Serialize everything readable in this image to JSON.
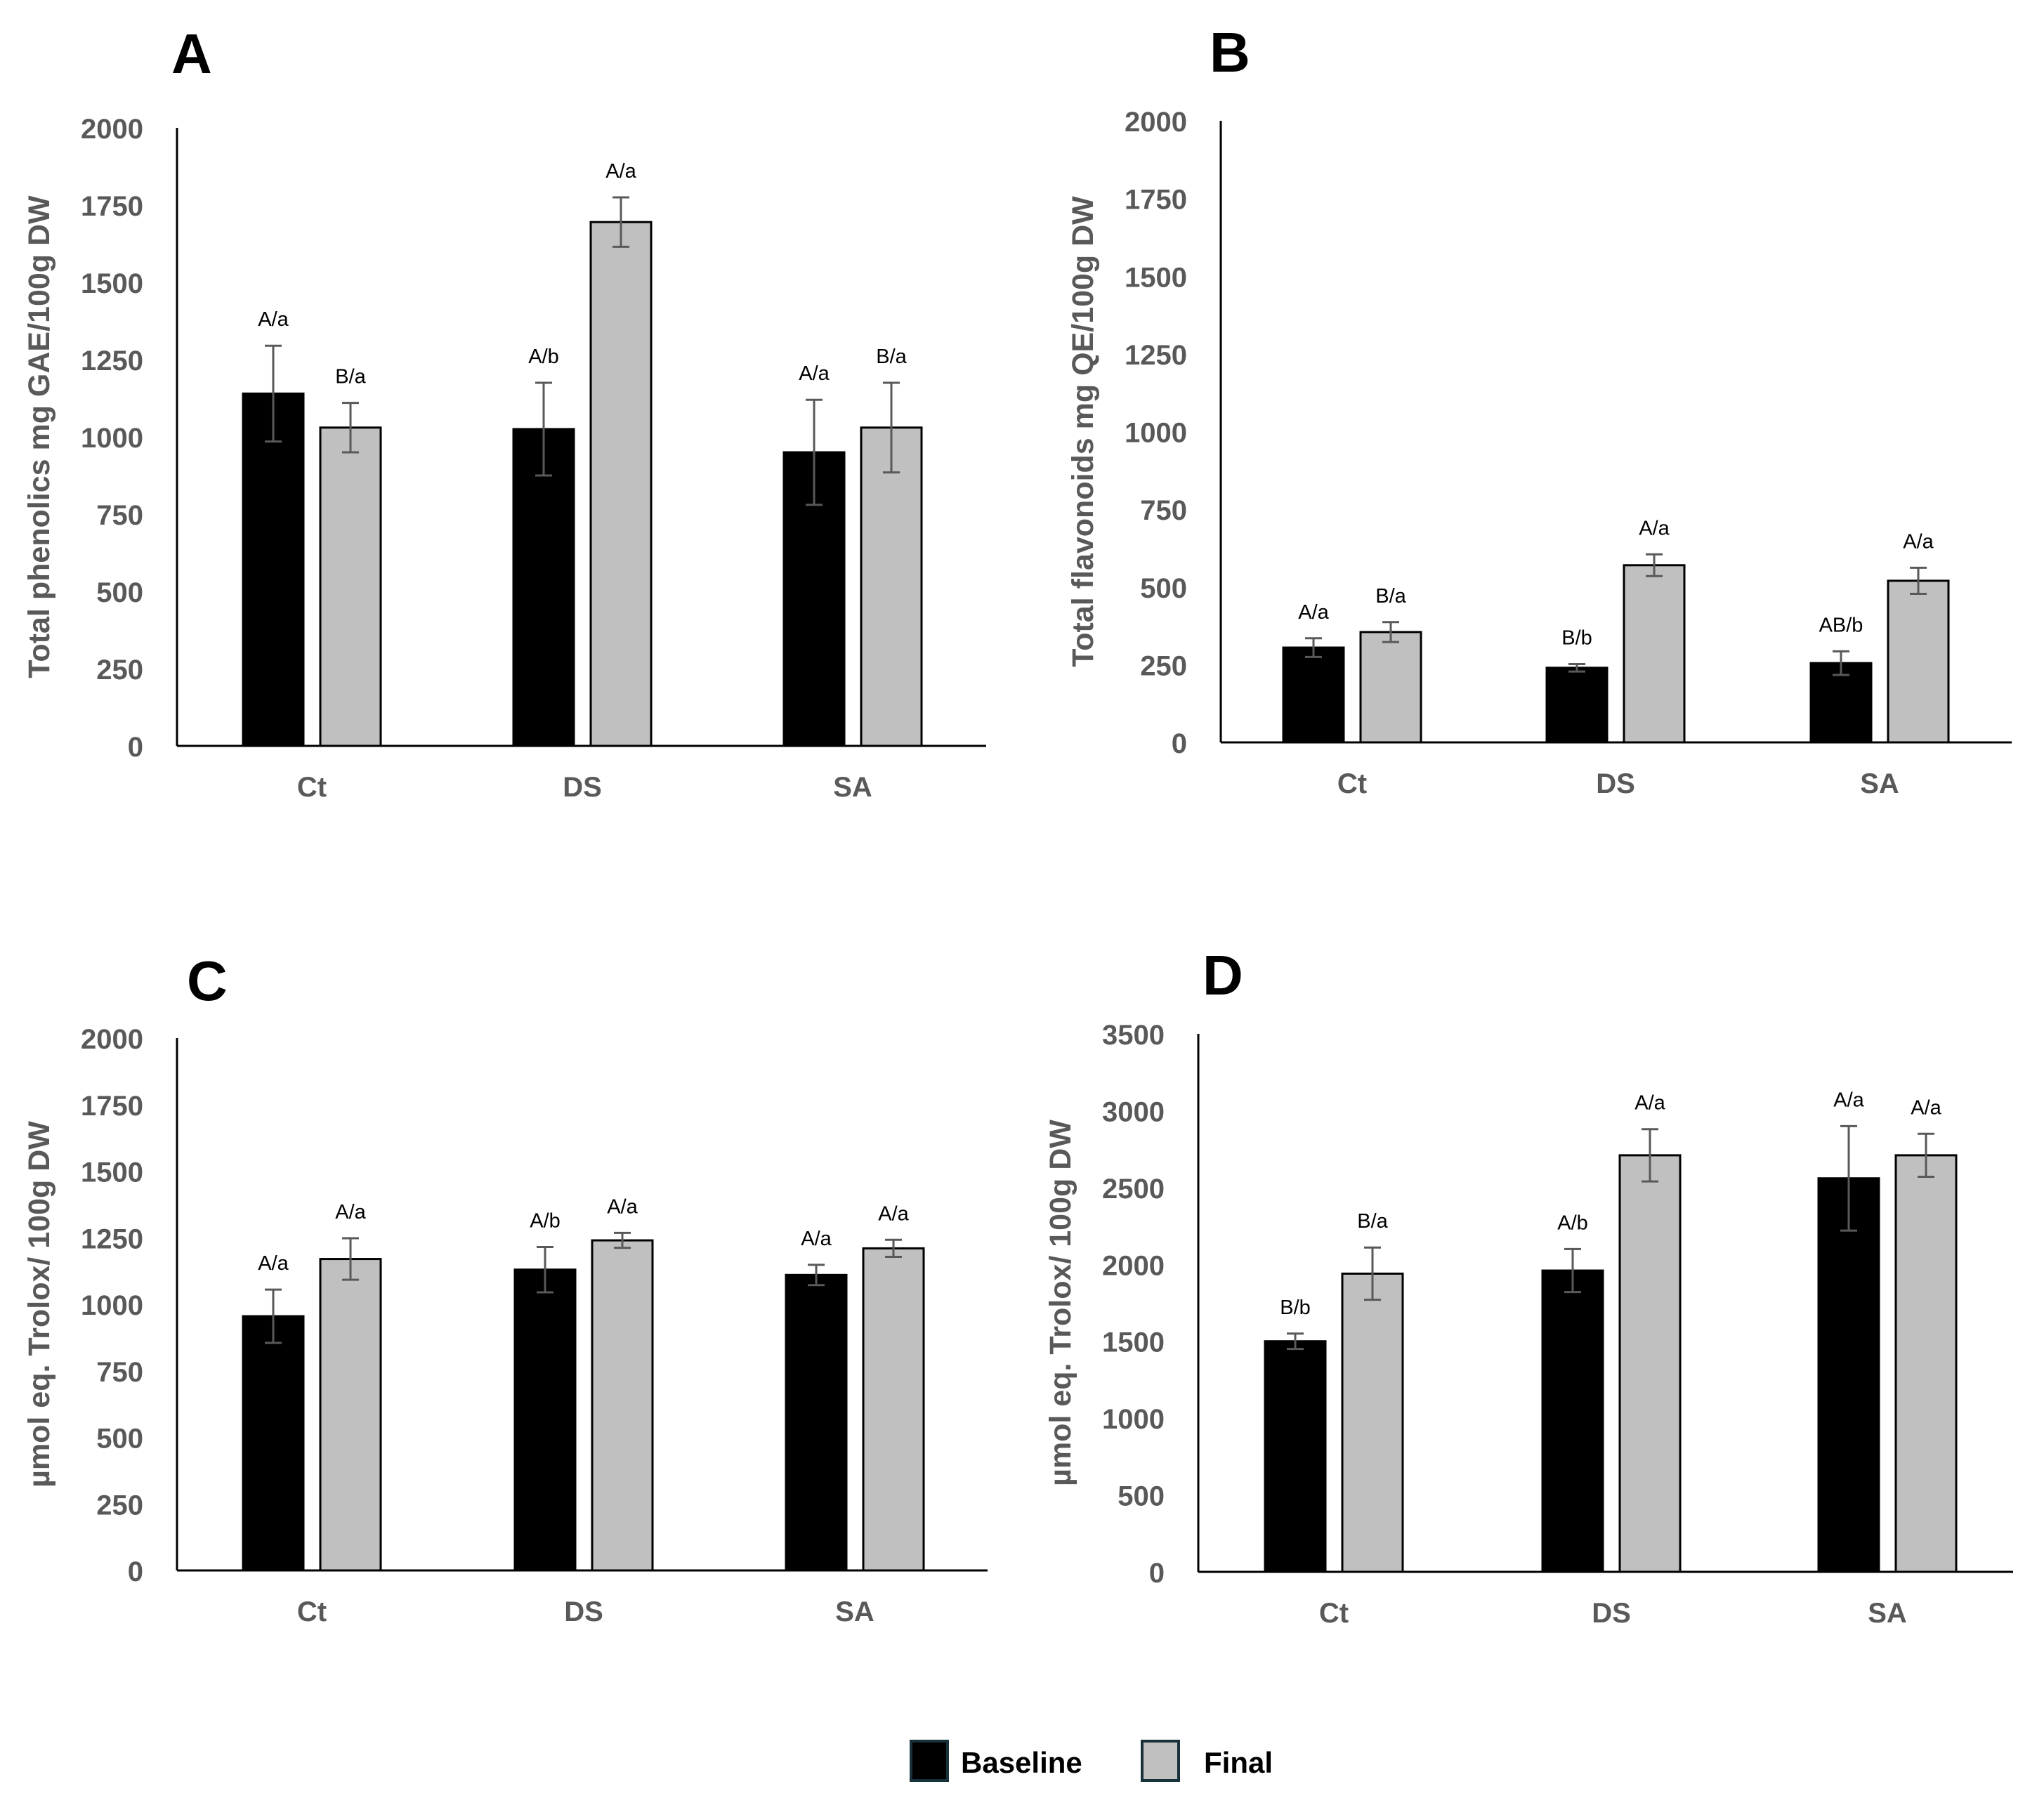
{
  "chart_data": [
    {
      "panel": "A",
      "type": "bar",
      "categories": [
        "Ct",
        "DS",
        "SA"
      ],
      "ylabel": "Total phenolics mg GAE/100g DW",
      "ylim": [
        0,
        2000
      ],
      "yticks": [
        "0",
        "250",
        "500",
        "750",
        "1000",
        "1250",
        "1500",
        "1750",
        "2000"
      ],
      "series": [
        {
          "name": "Baseline",
          "values": [
            1140,
            1025,
            950
          ],
          "errors": [
            155,
            150,
            170
          ],
          "labels": [
            "A/a",
            "A/b",
            "A/a"
          ]
        },
        {
          "name": "Final",
          "values": [
            1030,
            1695,
            1030
          ],
          "errors": [
            80,
            80,
            145
          ],
          "labels": [
            "B/a",
            "A/a",
            "B/a"
          ]
        }
      ]
    },
    {
      "panel": "B",
      "type": "bar",
      "categories": [
        "Ct",
        "DS",
        "SA"
      ],
      "ylabel": "Total flavonoids mg QE/100g DW",
      "ylim": [
        0,
        2000
      ],
      "yticks": [
        "0",
        "250",
        "500",
        "750",
        "1000",
        "1250",
        "1500",
        "1750",
        "2000"
      ],
      "series": [
        {
          "name": "Baseline",
          "values": [
            305,
            240,
            255
          ],
          "errors": [
            30,
            12,
            38
          ],
          "labels": [
            "A/a",
            "B/b",
            "AB/b"
          ]
        },
        {
          "name": "Final",
          "values": [
            355,
            570,
            520
          ],
          "errors": [
            32,
            35,
            42
          ],
          "labels": [
            "B/a",
            "A/a",
            "A/a"
          ]
        }
      ]
    },
    {
      "panel": "C",
      "type": "bar",
      "categories": [
        "Ct",
        "DS",
        "SA"
      ],
      "ylabel": "µmol eq. Trolox/ 100g  DW",
      "ylim": [
        0,
        2000
      ],
      "yticks": [
        "0",
        "250",
        "500",
        "750",
        "1000",
        "1250",
        "1500",
        "1750",
        "2000"
      ],
      "series": [
        {
          "name": "Baseline",
          "values": [
            955,
            1130,
            1110
          ],
          "errors": [
            100,
            85,
            38
          ],
          "labels": [
            "A/a",
            "A/b",
            "A/a"
          ]
        },
        {
          "name": "Final",
          "values": [
            1170,
            1240,
            1210
          ],
          "errors": [
            78,
            28,
            32
          ],
          "labels": [
            "A/a",
            "A/a",
            "A/a"
          ]
        }
      ]
    },
    {
      "panel": "D",
      "type": "bar",
      "categories": [
        "Ct",
        "DS",
        "SA"
      ],
      "ylabel": "µmol eq. Trolox/ 100g  DW",
      "ylim": [
        0,
        3500
      ],
      "yticks": [
        "0",
        "500",
        "1000",
        "1500",
        "2000",
        "2500",
        "3000",
        "3500"
      ],
      "series": [
        {
          "name": "Baseline",
          "values": [
            1500,
            1960,
            2560
          ],
          "errors": [
            50,
            140,
            340
          ],
          "labels": [
            "B/b",
            "A/b",
            "A/a"
          ]
        },
        {
          "name": "Final",
          "values": [
            1940,
            2710,
            2710
          ],
          "errors": [
            170,
            170,
            140
          ],
          "labels": [
            "B/a",
            "A/a",
            "A/a"
          ]
        }
      ]
    }
  ],
  "legend": {
    "items": [
      {
        "label": "Baseline",
        "color": "#000000"
      },
      {
        "label": "Final",
        "color": "#c0c0c0"
      }
    ]
  }
}
